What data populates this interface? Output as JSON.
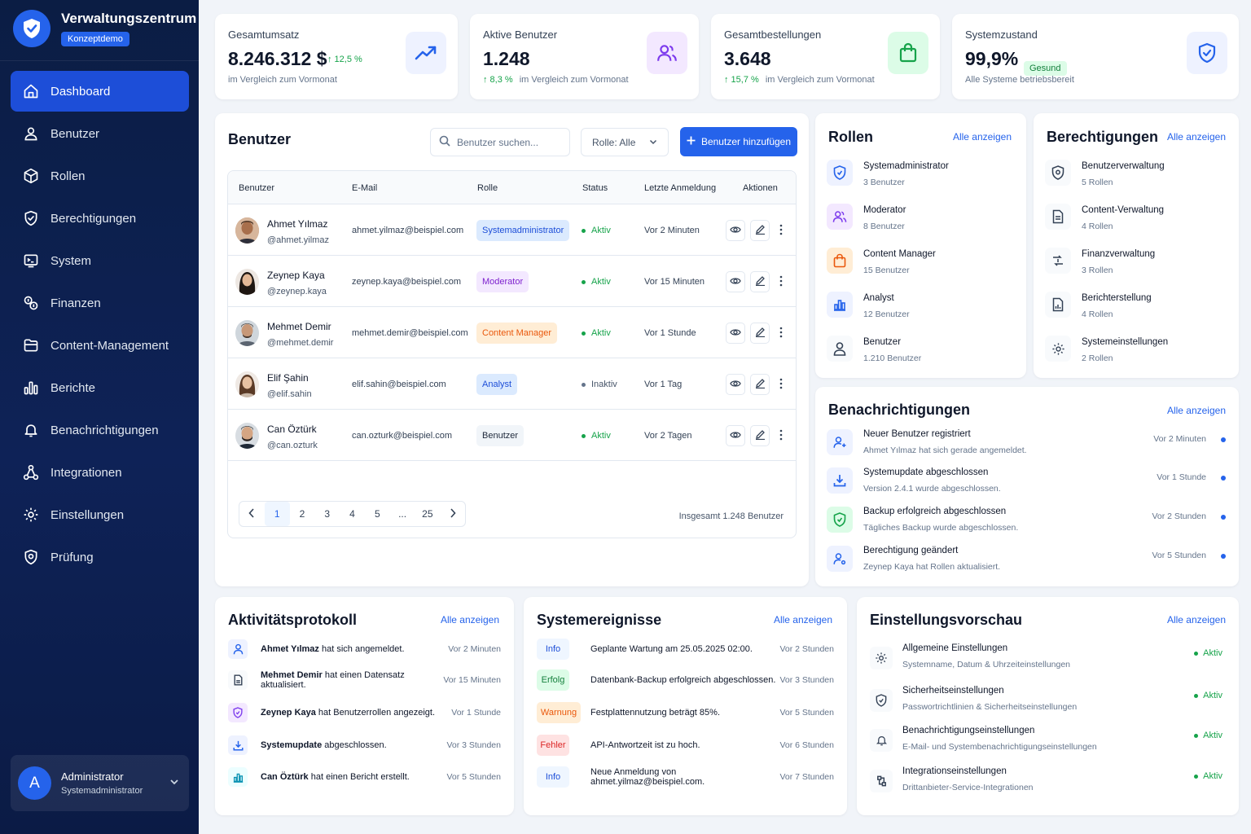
{
  "sidebar": {
    "title": "Verwaltungszentrum",
    "badge": "Konzeptdemo",
    "items": [
      {
        "label": "Dashboard",
        "icon": "home-icon",
        "active": true
      },
      {
        "label": "Benutzer",
        "icon": "user-icon"
      },
      {
        "label": "Rollen",
        "icon": "cube-icon"
      },
      {
        "label": "Berechtigungen",
        "icon": "shield-check-icon"
      },
      {
        "label": "System",
        "icon": "terminal-icon"
      },
      {
        "label": "Finanzen",
        "icon": "coins-icon"
      },
      {
        "label": "Content-Management",
        "icon": "folder-icon"
      },
      {
        "label": "Berichte",
        "icon": "bar-chart-icon"
      },
      {
        "label": "Benachrichtigungen",
        "icon": "bell-icon"
      },
      {
        "label": "Integrationen",
        "icon": "network-icon"
      },
      {
        "label": "Einstellungen",
        "icon": "gear-icon"
      },
      {
        "label": "Prüfung",
        "icon": "audit-shield-icon"
      }
    ],
    "user": {
      "initial": "A",
      "name": "Administrator",
      "role": "Systemadministrator"
    }
  },
  "stats": [
    {
      "label": "Gesamtumsatz",
      "value": "8.246.312 $",
      "change": "↑ 12,5 %",
      "note": "im Vergleich zum Vormonat",
      "icon": "trending-up-icon"
    },
    {
      "label": "Aktive Benutzer",
      "value": "1.248",
      "change": "↑ 8,3 %",
      "note": "im Vergleich zum Vormonat",
      "icon": "users-icon"
    },
    {
      "label": "Gesamtbestellungen",
      "value": "3.648",
      "change": "↑ 15,7 %",
      "note": "im Vergleich zum Vormonat",
      "icon": "shopping-bag-icon"
    },
    {
      "label": "Systemzustand",
      "value": "99,9%",
      "badge": "Gesund",
      "note": "Alle Systeme betriebsbereit",
      "icon": "shield-icon"
    }
  ],
  "users": {
    "title": "Benutzer",
    "search_placeholder": "Benutzer suchen...",
    "role_filter": "Rolle: Alle",
    "add_button": "Benutzer hinzufügen",
    "columns": [
      "Benutzer",
      "E-Mail",
      "Rolle",
      "Status",
      "Letzte Anmeldung",
      "Aktionen"
    ],
    "rows": [
      {
        "name": "Ahmet Yılmaz",
        "handle": "@ahmet.yilmaz",
        "email": "ahmet.yilmaz@beispiel.com",
        "role": "Systemadministrator",
        "status": "Aktiv",
        "last": "Vor 2 Minuten"
      },
      {
        "name": "Zeynep Kaya",
        "handle": "@zeynep.kaya",
        "email": "zeynep.kaya@beispiel.com",
        "role": "Moderator",
        "status": "Aktiv",
        "last": "Vor 15 Minuten"
      },
      {
        "name": "Mehmet Demir",
        "handle": "@mehmet.demir",
        "email": "mehmet.demir@beispiel.com",
        "role": "Content Manager",
        "status": "Aktiv",
        "last": "Vor 1 Stunde"
      },
      {
        "name": "Elif Şahin",
        "handle": "@elif.sahin",
        "email": "elif.sahin@beispiel.com",
        "role": "Analyst",
        "status": "Inaktiv",
        "last": "Vor 1 Tag"
      },
      {
        "name": "Can Öztürk",
        "handle": "@can.ozturk",
        "email": "can.ozturk@beispiel.com",
        "role": "Benutzer",
        "status": "Aktiv",
        "last": "Vor 2 Tagen"
      }
    ],
    "pages": [
      "1",
      "2",
      "3",
      "4",
      "5",
      "...",
      "25"
    ],
    "total": "Insgesamt 1.248 Benutzer"
  },
  "roles": {
    "title": "Rollen",
    "link": "Alle anzeigen",
    "items": [
      {
        "name": "Systemadministrator",
        "count": "3 Benutzer",
        "icon": "shield-icon"
      },
      {
        "name": "Moderator",
        "count": "8 Benutzer",
        "icon": "users-icon"
      },
      {
        "name": "Content Manager",
        "count": "15 Benutzer",
        "icon": "bag-icon"
      },
      {
        "name": "Analyst",
        "count": "12 Benutzer",
        "icon": "bar-chart-icon"
      },
      {
        "name": "Benutzer",
        "count": "1.210 Benutzer",
        "icon": "user-icon"
      }
    ]
  },
  "permissions": {
    "title": "Berechtigungen",
    "link": "Alle anzeigen",
    "items": [
      {
        "name": "Benutzerverwaltung",
        "count": "5 Rollen",
        "icon": "shield-gear-icon"
      },
      {
        "name": "Content-Verwaltung",
        "count": "4 Rollen",
        "icon": "document-icon"
      },
      {
        "name": "Finanzverwaltung",
        "count": "3 Rollen",
        "icon": "dollar-icon"
      },
      {
        "name": "Berichterstellung",
        "count": "4 Rollen",
        "icon": "report-icon"
      },
      {
        "name": "Systemeinstellungen",
        "count": "2 Rollen",
        "icon": "gear-icon"
      }
    ]
  },
  "notifications": {
    "title": "Benachrichtigungen",
    "link": "Alle anzeigen",
    "items": [
      {
        "title": "Neuer Benutzer registriert",
        "text": "Ahmet Yılmaz hat sich gerade angemeldet.",
        "time": "Vor 2 Minuten",
        "icon": "user-plus-icon"
      },
      {
        "title": "Systemupdate abgeschlossen",
        "text": "Version 2.4.1 wurde abgeschlossen.",
        "time": "Vor 1 Stunde",
        "icon": "download-icon"
      },
      {
        "title": "Backup erfolgreich abgeschlossen",
        "text": "Tägliches Backup wurde abgeschlossen.",
        "time": "Vor 2 Stunden",
        "icon": "shield-check-icon"
      },
      {
        "title": "Berechtigung geändert",
        "text": "Zeynep Kaya hat Rollen aktualisiert.",
        "time": "Vor 5 Stunden",
        "icon": "user-gear-icon"
      }
    ]
  },
  "activity": {
    "title": "Aktivitätsprotokoll",
    "link": "Alle anzeigen",
    "items": [
      {
        "actor": "Ahmet Yılmaz",
        "text": " hat sich angemeldet.",
        "time": "Vor 2 Minuten",
        "icon": "user-icon"
      },
      {
        "actor": "Mehmet Demir",
        "text": " hat einen Datensatz aktualisiert.",
        "time": "Vor 15 Minuten",
        "icon": "document-icon"
      },
      {
        "actor": "Zeynep Kaya",
        "text": " hat Benutzerrollen angezeigt.",
        "time": "Vor 1 Stunde",
        "icon": "shield-icon"
      },
      {
        "actor": "Systemupdate",
        "text": " abgeschlossen.",
        "time": "Vor 3 Stunden",
        "icon": "download-icon"
      },
      {
        "actor": "Can Öztürk",
        "text": " hat einen Bericht erstellt.",
        "time": "Vor 5 Stunden",
        "icon": "bar-chart-icon"
      }
    ]
  },
  "events": {
    "title": "Systemereignisse",
    "link": "Alle anzeigen",
    "items": [
      {
        "level": "Info",
        "text": "Geplante Wartung am 25.05.2025 02:00.",
        "time": "Vor 2 Stunden"
      },
      {
        "level": "Erfolg",
        "text": "Datenbank-Backup erfolgreich abgeschlossen.",
        "time": "Vor 3 Stunden"
      },
      {
        "level": "Warnung",
        "text": "Festplattennutzung beträgt 85%.",
        "time": "Vor 5 Stunden"
      },
      {
        "level": "Fehler",
        "text": "API-Antwortzeit ist zu hoch.",
        "time": "Vor 6 Stunden"
      },
      {
        "level": "Info",
        "text": "Neue Anmeldung von ahmet.yilmaz@beispiel.com.",
        "time": "Vor 7 Stunden"
      }
    ]
  },
  "settings_preview": {
    "title": "Einstellungsvorschau",
    "link": "Alle anzeigen",
    "items": [
      {
        "title": "Allgemeine Einstellungen",
        "sub": "Systemname, Datum & Uhrzeiteinstellungen",
        "status": "Aktiv",
        "icon": "gear-icon"
      },
      {
        "title": "Sicherheitseinstellungen",
        "sub": "Passwortrichtlinien & Sicherheitseinstellungen",
        "status": "Aktiv",
        "icon": "shield-icon"
      },
      {
        "title": "Benachrichtigungseinstellungen",
        "sub": "E-Mail- und Systembenachrichtigungseinstellungen",
        "status": "Aktiv",
        "icon": "bell-icon"
      },
      {
        "title": "Integrationseinstellungen",
        "sub": "Drittanbieter-Service-Integrationen",
        "status": "Aktiv",
        "icon": "plug-icon"
      }
    ]
  },
  "colors": {
    "sidebar": "#0b1d44",
    "accent": "#2563eb",
    "success": "#16a34a",
    "warning": "#ea580c",
    "danger": "#dc2626"
  }
}
